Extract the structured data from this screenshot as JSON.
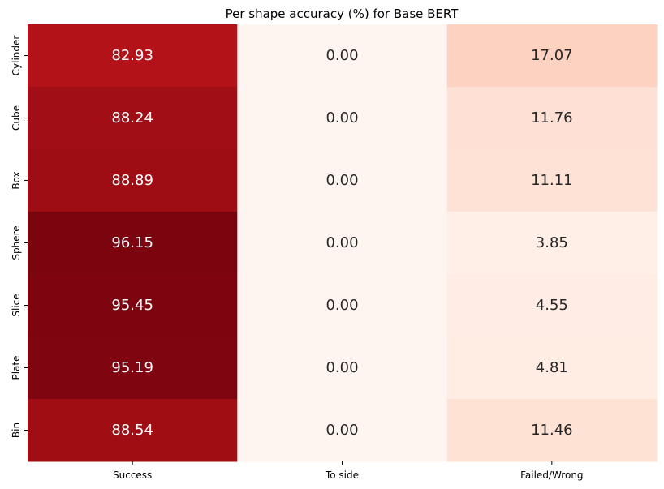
{
  "chart_data": {
    "type": "heatmap",
    "title": "Per shape accuracy (%) for Base BERT",
    "x_categories": [
      "Success",
      "To side",
      "Failed/Wrong"
    ],
    "y_categories": [
      "Cylinder",
      "Cube",
      "Box",
      "Sphere",
      "Slice",
      "Plate",
      "Bin"
    ],
    "values": [
      [
        82.93,
        0.0,
        17.07
      ],
      [
        88.24,
        0.0,
        11.76
      ],
      [
        88.89,
        0.0,
        11.11
      ],
      [
        96.15,
        0.0,
        3.85
      ],
      [
        95.45,
        0.0,
        4.55
      ],
      [
        95.19,
        0.0,
        4.81
      ],
      [
        88.54,
        0.0,
        11.46
      ]
    ],
    "value_labels": [
      [
        "82.93",
        "0.00",
        "17.07"
      ],
      [
        "88.24",
        "0.00",
        "11.76"
      ],
      [
        "88.89",
        "0.00",
        "11.11"
      ],
      [
        "96.15",
        "0.00",
        "3.85"
      ],
      [
        "95.45",
        "0.00",
        "4.55"
      ],
      [
        "95.19",
        "0.00",
        "4.81"
      ],
      [
        "88.54",
        "0.00",
        "11.46"
      ]
    ],
    "colormap": "Reds",
    "value_range": [
      0,
      100
    ],
    "colorbar": false,
    "grid": false,
    "colors": {
      "low": "#fff5f0",
      "high": "#67000d",
      "text_dark": "#262626",
      "text_light": "#ffffff"
    }
  }
}
